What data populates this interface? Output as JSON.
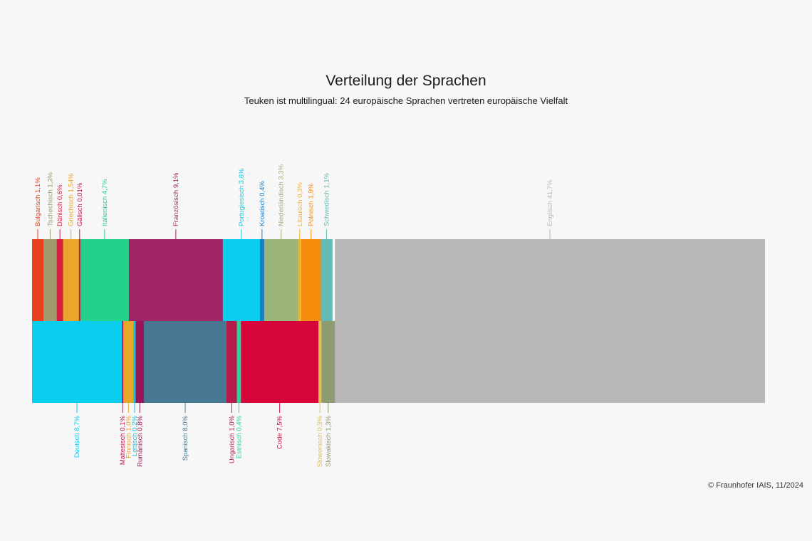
{
  "header": {
    "title": "Verteilung der Sprachen",
    "subtitle": "Teuken ist multilingual: 24 europäische Sprachen vertreten europäische Vielfalt"
  },
  "footer": {
    "credit": "© Fraunhofer IAIS, 11/2024"
  },
  "chart_data": {
    "type": "bar",
    "title": "Verteilung der Sprachen",
    "subtitle": "Teuken ist multilingual: 24 europäische Sprachen vertreten europäische Vielfalt",
    "unit": "%",
    "shared_segment": {
      "label": "Englisch 41,7%",
      "value": 41.7,
      "color": "#b8b8b8"
    },
    "rows": [
      {
        "segments": [
          {
            "label": "Bulgarisch 1,1%",
            "value": 1.1,
            "color": "#e8411e"
          },
          {
            "label": "Tschechisch 1,3%",
            "value": 1.3,
            "color": "#a09a6e"
          },
          {
            "label": "Dänisch 0,6%",
            "value": 0.6,
            "color": "#d61f43"
          },
          {
            "label": "Griechisch 1,54%",
            "value": 1.54,
            "color": "#e8a62a"
          },
          {
            "label": "Gälisch 0,01%",
            "value": 0.01,
            "color": "#c2185b"
          },
          {
            "label": "Italienisch 4,7%",
            "value": 4.7,
            "color": "#23d08c"
          },
          {
            "label": "Französisch 9,1%",
            "value": 9.1,
            "color": "#a02566"
          },
          {
            "label": "Portugiesisch 3,6%",
            "value": 3.6,
            "color": "#0bcdf0"
          },
          {
            "label": "Kroatisch 0,4%",
            "value": 0.4,
            "color": "#1a7cc0"
          },
          {
            "label": "Niederländisch 3,3%",
            "value": 3.3,
            "color": "#9bb57a"
          },
          {
            "label": "Litauisch 0,3%",
            "value": 0.3,
            "color": "#f2b42a"
          },
          {
            "label": "Polnisch 1,9%",
            "value": 1.9,
            "color": "#f58c0b"
          },
          {
            "label": "Schwedisch 1,1%",
            "value": 1.1,
            "color": "#63b9b4"
          }
        ]
      },
      {
        "segments": [
          {
            "label": "Deutsch 8,7%",
            "value": 8.7,
            "color": "#0bcdf0"
          },
          {
            "label": "Maltesisch 0,1%",
            "value": 0.1,
            "color": "#c2185b"
          },
          {
            "label": "Finnisch 1,0%",
            "value": 1.0,
            "color": "#e8a62a"
          },
          {
            "label": "Lettisch 0,2%",
            "value": 0.2,
            "color": "#14c0d8"
          },
          {
            "label": "Rumänisch 0,8%",
            "value": 0.8,
            "color": "#9c1458"
          },
          {
            "label": "Spanisch 8,0%",
            "value": 8.0,
            "color": "#477891"
          },
          {
            "label": "Ungarisch 1,0%",
            "value": 1.0,
            "color": "#b61c48"
          },
          {
            "label": "Estnisch 0,4%",
            "value": 0.4,
            "color": "#2ad49a"
          },
          {
            "label": "Code 7,5%",
            "value": 7.5,
            "color": "#d6063b"
          },
          {
            "label": "Slowenisch 0,3%",
            "value": 0.3,
            "color": "#dcc05a"
          },
          {
            "label": "Slowakisch 1,3%",
            "value": 1.3,
            "color": "#8f9b70"
          }
        ]
      }
    ]
  }
}
